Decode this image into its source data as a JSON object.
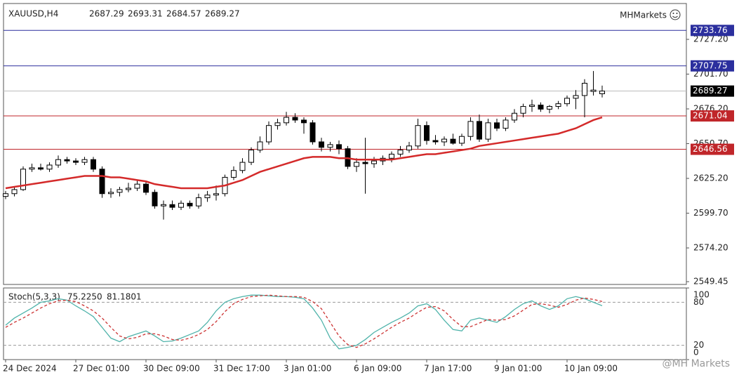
{
  "chart_data": [
    {
      "type": "candlestick",
      "title": "XAUUSD,H4",
      "brand": "MHMarkets",
      "watermark": "@MH Markets",
      "categories": [
        "24 Dec 2024",
        null,
        null,
        null,
        null,
        null,
        null,
        null,
        "27 Dec 01:00",
        null,
        null,
        null,
        null,
        null,
        null,
        null,
        "30 Dec 09:00",
        null,
        null,
        null,
        null,
        null,
        null,
        null,
        "31 Dec 17:00",
        null,
        null,
        null,
        null,
        null,
        null,
        null,
        "3 Jan 01:00",
        null,
        null,
        null,
        null,
        null,
        null,
        null,
        "6 Jan 09:00",
        null,
        null,
        null,
        null,
        null,
        null,
        null,
        "7 Jan 17:00",
        null,
        null,
        null,
        null,
        null,
        null,
        null,
        "9 Jan 01:00",
        null,
        null,
        null,
        null,
        null,
        null,
        null,
        "10 Jan 09:00",
        null,
        null,
        null,
        null
      ],
      "open": [
        2612,
        2614,
        2617,
        2632,
        2633,
        2632,
        2635,
        2639,
        2638,
        2637,
        2639,
        2632,
        2614,
        2615,
        2617,
        2618,
        2621,
        2615,
        2605,
        2606,
        2604,
        2607,
        2605,
        2611,
        2613,
        2614,
        2626,
        2631,
        2637,
        2646,
        2652,
        2664,
        2666,
        2670,
        2668,
        2666,
        2652,
        2648,
        2650,
        2647,
        2634,
        2637,
        2636,
        2638,
        2640,
        2643,
        2646,
        2649,
        2664,
        2653,
        2652,
        2654,
        2651,
        2656,
        2667,
        2654,
        2666,
        2662,
        2668,
        2673,
        2678,
        2679,
        2676,
        2678,
        2680,
        2684,
        2686,
        2689,
        2687.29
      ],
      "high": [
        2616,
        2619,
        2634,
        2636,
        2636,
        2637,
        2642,
        2641,
        2640,
        2641,
        2641,
        2634,
        2618,
        2619,
        2622,
        2624,
        2623,
        2617,
        2609,
        2609,
        2609,
        2609,
        2614,
        2616,
        2620,
        2628,
        2634,
        2640,
        2648,
        2656,
        2667,
        2669,
        2674,
        2673,
        2670,
        2668,
        2655,
        2652,
        2653,
        2649,
        2640,
        2655,
        2641,
        2642,
        2645,
        2649,
        2652,
        2669,
        2667,
        2657,
        2656,
        2658,
        2658,
        2670,
        2672,
        2669,
        2669,
        2670,
        2676,
        2680,
        2683,
        2681,
        2679,
        2682,
        2686,
        2690,
        2698,
        2704,
        2693.31
      ],
      "low": [
        2610,
        2612,
        2616,
        2630,
        2631,
        2630,
        2633,
        2636,
        2635,
        2635,
        2630,
        2611,
        2611,
        2612,
        2615,
        2616,
        2613,
        2603,
        2595,
        2602,
        2602,
        2603,
        2603,
        2608,
        2609,
        2612,
        2624,
        2629,
        2635,
        2644,
        2650,
        2661,
        2664,
        2666,
        2658,
        2650,
        2645,
        2645,
        2643,
        2632,
        2630,
        2614,
        2633,
        2635,
        2637,
        2641,
        2644,
        2647,
        2650,
        2650,
        2649,
        2650,
        2649,
        2653,
        2652,
        2652,
        2660,
        2660,
        2666,
        2670,
        2674,
        2674,
        2673,
        2676,
        2678,
        2676,
        2670,
        2686,
        2684.57
      ],
      "close": [
        2614,
        2617,
        2632,
        2633,
        2632,
        2635,
        2639,
        2638,
        2637,
        2639,
        2632,
        2614,
        2615,
        2617,
        2618,
        2621,
        2615,
        2605,
        2606,
        2604,
        2607,
        2605,
        2611,
        2613,
        2614,
        2626,
        2631,
        2637,
        2646,
        2652,
        2664,
        2666,
        2670,
        2668,
        2666,
        2652,
        2648,
        2650,
        2647,
        2634,
        2637,
        2636,
        2638,
        2640,
        2643,
        2646,
        2649,
        2664,
        2653,
        2652,
        2654,
        2651,
        2656,
        2667,
        2654,
        2666,
        2662,
        2668,
        2673,
        2678,
        2679,
        2676,
        2678,
        2680,
        2684,
        2686,
        2695,
        2690,
        2689.27
      ],
      "up_color": "#ffffff",
      "down_color": "#000000",
      "moving_average": {
        "color": "#d42a2a",
        "values": [
          2618,
          2619,
          2620,
          2621,
          2622,
          2623,
          2624,
          2625,
          2626,
          2627,
          2627,
          2627,
          2626,
          2626,
          2625,
          2624,
          2623,
          2621,
          2620,
          2619,
          2618,
          2618,
          2618,
          2618,
          2619,
          2620,
          2622,
          2624,
          2627,
          2630,
          2632,
          2634,
          2636,
          2638,
          2640,
          2641,
          2641,
          2641,
          2640,
          2640,
          2639,
          2639,
          2639,
          2639,
          2639,
          2640,
          2641,
          2642,
          2643,
          2643,
          2644,
          2645,
          2646,
          2647,
          2649,
          2650,
          2651,
          2652,
          2653,
          2654,
          2655,
          2656,
          2657,
          2658,
          2660,
          2662,
          2665,
          2668,
          2670
        ]
      },
      "levels": [
        {
          "value": 2733.76,
          "color": "#2b2f9e"
        },
        {
          "value": 2707.75,
          "color": "#2b2f9e"
        },
        {
          "value": 2689.27,
          "color": "#000000",
          "line_color": "#bbbbbb"
        },
        {
          "value": 2671.04,
          "color": "#c0262a"
        },
        {
          "value": 2646.56,
          "color": "#c0262a"
        }
      ],
      "ylim": [
        2547.4,
        2753.5
      ],
      "yticks": [
        2549.45,
        {
          "value": 2574.2,
          "label": "2574.20"
        },
        {
          "value": 2599.7,
          "label": "2599.70"
        },
        {
          "value": 2625.2,
          "label": "2625.20"
        },
        {
          "value": 2650.7,
          "label": "2650.70"
        },
        {
          "value": 2676.2,
          "label": "2676.20"
        },
        {
          "value": 2701.7,
          "label": "2701.70"
        },
        {
          "value": 2727.2,
          "label": "2727.20"
        }
      ]
    },
    {
      "type": "line",
      "title": "Stoch(5,3,3)",
      "readout": [
        {
          "value": 75.225,
          "label": "75.2250"
        },
        {
          "value": 81.1801,
          "label": "81.1801"
        }
      ],
      "series": [
        {
          "color": "#4fb3aa",
          "dash": false,
          "values": [
            48,
            58,
            65,
            72,
            80,
            82,
            85,
            83,
            75,
            68,
            60,
            45,
            30,
            25,
            32,
            36,
            40,
            33,
            25,
            26,
            30,
            35,
            40,
            52,
            68,
            80,
            85,
            88,
            90,
            90,
            89,
            88,
            88,
            87,
            85,
            72,
            55,
            30,
            15,
            17,
            20,
            28,
            38,
            45,
            52,
            58,
            65,
            75,
            78,
            70,
            55,
            42,
            40,
            55,
            58,
            55,
            52,
            60,
            70,
            78,
            82,
            75,
            70,
            75,
            85,
            88,
            85,
            80,
            75.225
          ]
        },
        {
          "color": "#cc3333",
          "dash": true,
          "values": [
            45,
            52,
            58,
            65,
            72,
            78,
            82,
            83,
            81,
            75,
            68,
            58,
            45,
            33,
            29,
            31,
            36,
            36,
            33,
            28,
            27,
            30,
            35,
            42,
            53,
            67,
            78,
            84,
            88,
            89,
            90,
            89,
            88,
            88,
            87,
            81,
            71,
            52,
            33,
            21,
            17,
            22,
            29,
            37,
            45,
            52,
            58,
            66,
            73,
            74,
            68,
            56,
            46,
            46,
            51,
            56,
            55,
            56,
            61,
            69,
            77,
            78,
            76,
            73,
            77,
            83,
            86,
            84,
            81.1801
          ]
        }
      ],
      "ylim": [
        0,
        100
      ],
      "yticks": [
        0,
        20,
        80,
        100
      ]
    }
  ]
}
